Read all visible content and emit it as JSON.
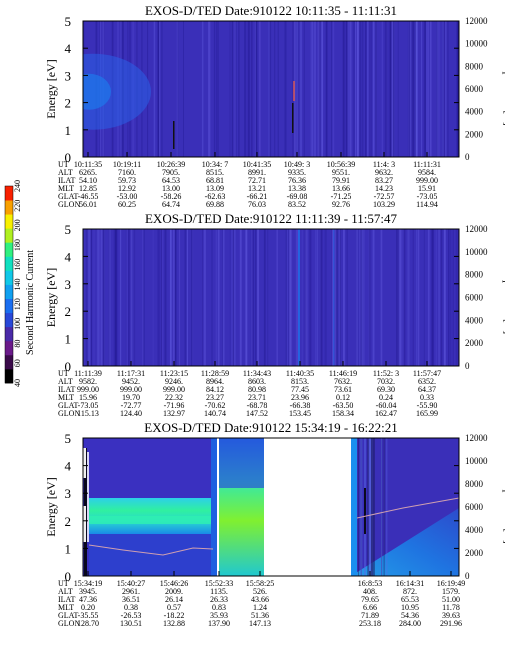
{
  "colors": {
    "background": "#3a2fb8",
    "noise_dark": "#241a96",
    "noise_light": "#5a52d8",
    "colorbar": [
      "#000000",
      "#3a0a4a",
      "#6a1a8a",
      "#4a2aa8",
      "#2848d8",
      "#1a6ef0",
      "#10a0f0",
      "#10c8e8",
      "#10e0c0",
      "#30f080",
      "#b0f020",
      "#f8f000",
      "#f8a000",
      "#f82000"
    ]
  },
  "colorbar": {
    "label": "Second Harmonic Current",
    "ticks": [
      "40",
      "60",
      "80",
      "100",
      "120",
      "140",
      "160",
      "180",
      "200",
      "220",
      "240"
    ],
    "range": [
      40,
      240
    ]
  },
  "chart_data": [
    {
      "type": "heatmap",
      "title": "EXOS-D/TED   Date:910122   10:11:35 - 11:11:31",
      "ylabel": "Energy [eV]",
      "y2label": "Temperature [K]",
      "ylim": [
        0,
        5
      ],
      "y2lim": [
        0,
        12000
      ],
      "yticks": [
        "0",
        "1",
        "2",
        "3",
        "4",
        "5"
      ],
      "y2ticks": [
        "0",
        "2000",
        "4000",
        "6000",
        "8000",
        "10000",
        "12000"
      ],
      "row_labels": [
        "UT",
        "ALT",
        "ILAT",
        "MLT",
        "GLAT",
        "GLON"
      ],
      "columns": [
        [
          "10:11:35",
          "6265.",
          "54.10",
          "12.85",
          "-46.55",
          "56.01"
        ],
        [
          "10:19:11",
          "7160.",
          "59.73",
          "12.92",
          "-53.00",
          "60.25"
        ],
        [
          "10:26:39",
          "7905.",
          "64.53",
          "13.00",
          "-58.26",
          "64.74"
        ],
        [
          "10:34: 7",
          "8515.",
          "68.81",
          "13.09",
          "-62.63",
          "69.88"
        ],
        [
          "10:41:35",
          "8991.",
          "72.71",
          "13.21",
          "-66.21",
          "76.03"
        ],
        [
          "10:49: 3",
          "9335.",
          "76.36",
          "13.38",
          "-69.08",
          "83.52"
        ],
        [
          "10:56:39",
          "9551.",
          "79.91",
          "13.66",
          "-71.25",
          "92.76"
        ],
        [
          "11:4: 3",
          "9632.",
          "83.27",
          "14.23",
          "-72.57",
          "103.29"
        ],
        [
          "11:11:31",
          "9584.",
          "999.00",
          "15.91",
          "-73.05",
          "114.94"
        ]
      ]
    },
    {
      "type": "heatmap",
      "title": "EXOS-D/TED   Date:910122   11:11:39 - 11:57:47",
      "ylabel": "Energy [eV]",
      "y2label": "Temperature [K]",
      "ylim": [
        0,
        5
      ],
      "y2lim": [
        0,
        12000
      ],
      "yticks": [
        "0",
        "1",
        "2",
        "3",
        "4",
        "5"
      ],
      "y2ticks": [
        "0",
        "2000",
        "4000",
        "6000",
        "8000",
        "10000",
        "12000"
      ],
      "row_labels": [
        "UT",
        "ALT",
        "ILAT",
        "MLT",
        "GLAT",
        "GLON"
      ],
      "columns": [
        [
          "11:11:39",
          "9582.",
          "999.00",
          "15.96",
          "-73.05",
          "115.13"
        ],
        [
          "11:17:31",
          "9452.",
          "999.00",
          "19.70",
          "-72.77",
          "124.40"
        ],
        [
          "11:23:15",
          "9246.",
          "999.00",
          "22.32",
          "-71.96",
          "132.97"
        ],
        [
          "11:28:59",
          "8964.",
          "84.12",
          "23.27",
          "-70.62",
          "140.74"
        ],
        [
          "11:34:43",
          "8603.",
          "80.98",
          "23.71",
          "-68.78",
          "147.52"
        ],
        [
          "11:40:35",
          "8153.",
          "77.45",
          "23.96",
          "-66.38",
          "153.45"
        ],
        [
          "11:46:19",
          "7632.",
          "73.61",
          "0.12",
          "-63.50",
          "158.34"
        ],
        [
          "11:52: 3",
          "7032.",
          "69.30",
          "0.24",
          "-60.04",
          "162.47"
        ],
        [
          "11:57:47",
          "6352.",
          "64.37",
          "0.33",
          "-55.90",
          "165.99"
        ]
      ]
    },
    {
      "type": "heatmap",
      "title": "EXOS-D/TED   Date:910122   15:34:19 - 16:22:21",
      "ylabel": "Energy [eV]",
      "y2label": "Temperature [K]",
      "ylim": [
        0,
        5
      ],
      "y2lim": [
        0,
        12000
      ],
      "yticks": [
        "0",
        "1",
        "2",
        "3",
        "4",
        "5"
      ],
      "y2ticks": [
        "0",
        "2000",
        "4000",
        "6000",
        "8000",
        "10000",
        "12000"
      ],
      "row_labels": [
        "UT",
        "ALT",
        "ILAT",
        "MLT",
        "GLAT",
        "GLON"
      ],
      "columns": [
        [
          "15:34:19",
          "3945.",
          "47.36",
          "0.20",
          "-35.55",
          "128.70"
        ],
        [
          "15:40:27",
          "2961.",
          "36.51",
          "0.38",
          "-26.53",
          "130.51"
        ],
        [
          "15:46:26",
          "2009.",
          "26.14",
          "0.57",
          "-18.22",
          "132.88"
        ],
        [
          "15:52:33",
          "1135.",
          "26.33",
          "0.83",
          "35.93",
          "137.90"
        ],
        [
          "15:58:25",
          "526.",
          "43.66",
          "1.24",
          "51.36",
          "147.13"
        ],
        [
          "16:8:53",
          "408.",
          "79.65",
          "6.66",
          "71.89",
          "253.18"
        ],
        [
          "16:14:31",
          "872.",
          "65.53",
          "10.95",
          "54.36",
          "284.00"
        ],
        [
          "16:19:49",
          "1579.",
          "51.00",
          "11.78",
          "39.63",
          "291.96"
        ]
      ]
    }
  ]
}
